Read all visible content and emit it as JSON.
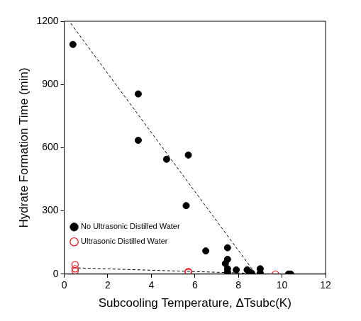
{
  "chart_data": {
    "type": "scatter",
    "x_label": "Subcooling Temperature, ΔTsubc(K)",
    "y_label": "Hydrate Formation Time (min)",
    "xlim": [
      0,
      12
    ],
    "xticks": [
      0,
      2,
      4,
      6,
      8,
      10,
      12
    ],
    "ylim": [
      0,
      1200
    ],
    "yticks": [
      0,
      300,
      600,
      900,
      1200
    ],
    "grid": false,
    "legend": "top-right",
    "series": [
      {
        "name": "No Ultrasonic Distilled Water",
        "type": "scatter",
        "color": "#000000",
        "marker": "circle",
        "x": [
          0.4,
          3.4,
          3.4,
          4.7,
          5.7,
          5.6,
          6.5,
          7.5,
          7.5,
          7.4,
          7.5,
          7.5,
          7.5,
          7.9,
          8.4,
          8.5,
          8.6,
          9.0,
          9.0,
          10.3,
          10.4
        ],
        "values": [
          1090,
          855,
          635,
          545,
          565,
          325,
          110,
          125,
          70,
          50,
          25,
          10,
          0,
          20,
          20,
          10,
          5,
          25,
          5,
          0,
          0
        ]
      },
      {
        "name": "Ultrasonic Distilled Water",
        "type": "scatter",
        "color": "#e8202a",
        "marker": "circle_open",
        "x": [
          0.5,
          0.5,
          0.5,
          5.7,
          5.7,
          9.7
        ],
        "values": [
          45,
          25,
          15,
          12,
          8,
          0
        ]
      },
      {
        "type": "line",
        "color": "#000000",
        "line_style": "dashed",
        "x": [
          0.3,
          8.8
        ],
        "values": [
          1190,
          0
        ]
      },
      {
        "type": "line",
        "color": "#000000",
        "line_style": "dashed",
        "x": [
          0.4,
          9.7
        ],
        "values": [
          30,
          0
        ]
      }
    ]
  }
}
